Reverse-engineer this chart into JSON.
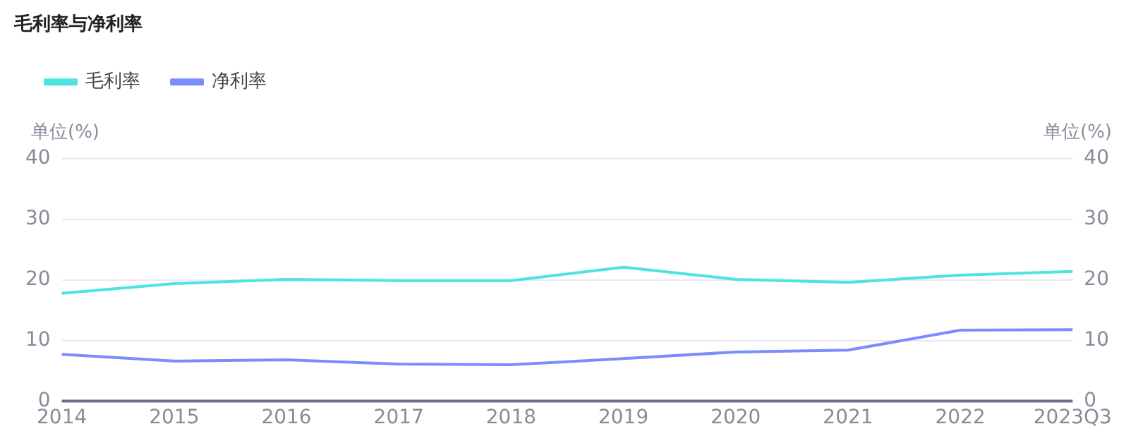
{
  "chart_data": {
    "type": "line",
    "title": "毛利率与净利率",
    "ylabel": "单位(%)",
    "y2label": "单位(%)",
    "categories": [
      "2014",
      "2015",
      "2016",
      "2017",
      "2018",
      "2019",
      "2020",
      "2021",
      "2022",
      "2023Q3"
    ],
    "series": [
      {
        "name": "毛利率",
        "color": "#4de3e0",
        "values": [
          17.8,
          19.4,
          20.1,
          19.9,
          19.9,
          22.1,
          20.1,
          19.6,
          20.8,
          21.4
        ]
      },
      {
        "name": "净利率",
        "color": "#7b8cff",
        "values": [
          7.7,
          6.6,
          6.8,
          6.1,
          6.0,
          7.0,
          8.1,
          8.4,
          11.7,
          11.8
        ]
      }
    ],
    "ylim": [
      0,
      40
    ],
    "yticks": [
      0,
      10,
      20,
      30,
      40
    ],
    "y2lim": [
      0,
      40
    ],
    "y2ticks": [
      0,
      10,
      20,
      30,
      40
    ],
    "grid": "y",
    "legend": "top left",
    "marker": "none",
    "line_style": "solid"
  }
}
